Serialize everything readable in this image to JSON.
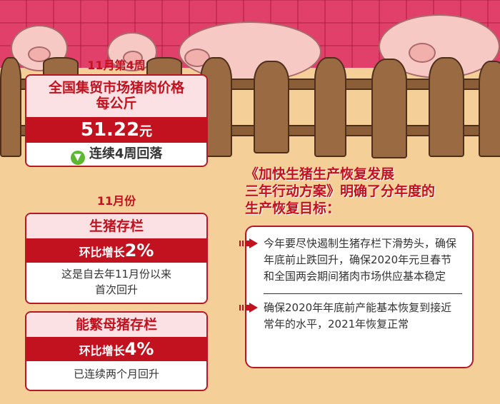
{
  "price_card": {
    "week": "11月第4周",
    "title_line1": "全国集贸市场猪肉价格",
    "title_line2": "每公斤",
    "price": "51.22",
    "unit": "元",
    "trend": "连续4周回落",
    "trend_icon": "down-arrow-circle-icon"
  },
  "month_label": "11月份",
  "hog_card": {
    "title": "生猪存栏",
    "change_label": "环比增长",
    "change_value": "2%",
    "note_line1": "这是自去年11月份以来",
    "note_line2": "首次回升"
  },
  "sow_card": {
    "title": "能繁母猪存栏",
    "change_label": "环比增长",
    "change_value": "4%",
    "note": "已连续两个月回升"
  },
  "plan": {
    "heading_line1": "《加快生猪生产恢复发展",
    "heading_line2": "三年行动方案》明确了分年度的",
    "heading_line3": "生产恢复目标：",
    "items": [
      "今年要尽快遏制生猪存栏下滑势头，确保年底前止跌回升，确保2020年元旦春节和全国两会期间猪肉市场供应基本稳定",
      "确保2020年年底前产能基本恢复到接近常年的水平，2021年恢复正常"
    ]
  },
  "colors": {
    "accent": "#c2121f",
    "background": "#f4cf98",
    "wall": "#e0406a",
    "trend_green": "#5cb82e"
  }
}
